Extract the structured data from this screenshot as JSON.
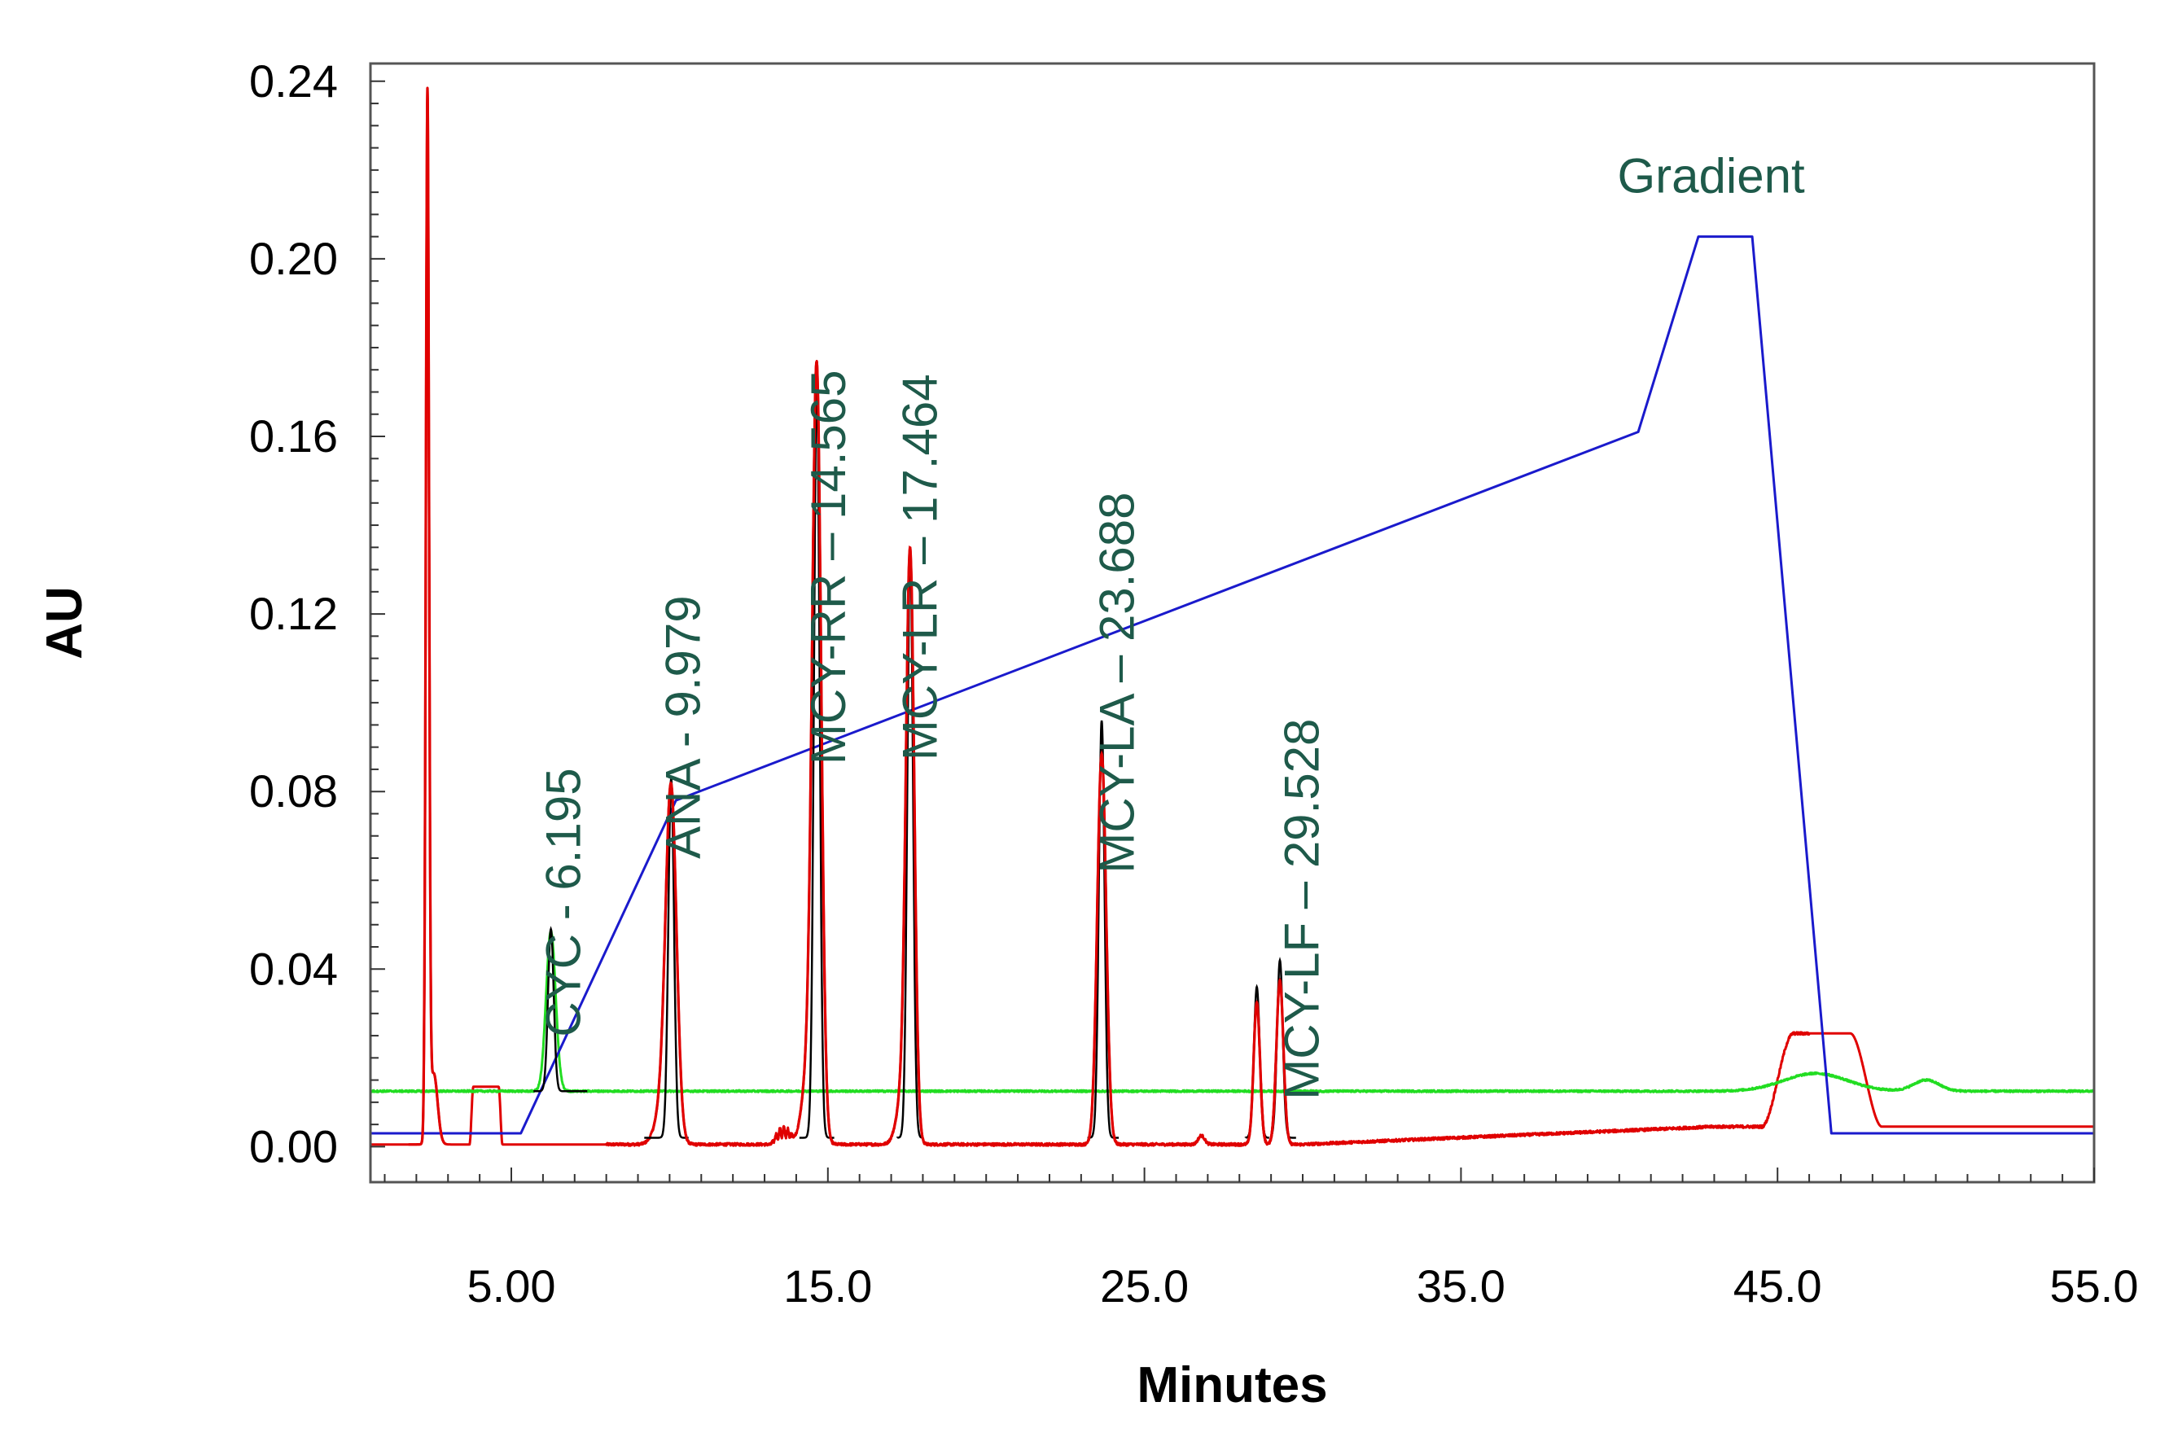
{
  "chart_data": {
    "type": "line",
    "title": "",
    "xlabel": "Minutes",
    "ylabel": "AU",
    "xlim": [
      0.55,
      55.0
    ],
    "ylim": [
      -0.008,
      0.244
    ],
    "x_ticks": [
      {
        "value": 5.0,
        "label": "5.00"
      },
      {
        "value": 15.0,
        "label": "15.0"
      },
      {
        "value": 25.0,
        "label": "25.0"
      },
      {
        "value": 35.0,
        "label": "35.0"
      },
      {
        "value": 45.0,
        "label": "45.0"
      },
      {
        "value": 55.0,
        "label": "55.0"
      }
    ],
    "y_ticks": [
      {
        "value": 0.0,
        "label": "0.00"
      },
      {
        "value": 0.04,
        "label": "0.04"
      },
      {
        "value": 0.08,
        "label": "0.08"
      },
      {
        "value": 0.12,
        "label": "0.12"
      },
      {
        "value": 0.16,
        "label": "0.16"
      },
      {
        "value": 0.2,
        "label": "0.20"
      },
      {
        "value": 0.24,
        "label": "0.24"
      }
    ],
    "colors": {
      "red": "#e00000",
      "green": "#22dd22",
      "blue": "#1a1acc",
      "black": "#000000",
      "label": "#1e5a4a"
    },
    "series": [
      {
        "name": "red-trace",
        "color": "#e00000",
        "baseline": 0.0005,
        "noise": [
          [
            8.0,
            46.0,
            0.0006
          ]
        ],
        "features": [
          {
            "type": "gauss",
            "center": 2.35,
            "height": 0.234,
            "width": 0.05
          },
          {
            "type": "gauss",
            "center": 2.55,
            "height": 0.016,
            "width": 0.12
          },
          {
            "type": "plateau",
            "start": 3.8,
            "end": 4.6,
            "height": 0.013,
            "rise": 0.12
          },
          {
            "type": "gauss",
            "center": 10.05,
            "height": 0.074,
            "width": 0.17
          },
          {
            "type": "gauss",
            "center": 9.85,
            "height": 0.01,
            "width": 0.25
          },
          {
            "type": "bump",
            "start": 13.2,
            "end": 14.0,
            "height": 0.004
          },
          {
            "type": "gauss",
            "center": 14.65,
            "height": 0.163,
            "width": 0.14
          },
          {
            "type": "gauss",
            "center": 14.45,
            "height": 0.02,
            "width": 0.22
          },
          {
            "type": "gauss",
            "center": 17.6,
            "height": 0.127,
            "width": 0.13
          },
          {
            "type": "gauss",
            "center": 17.4,
            "height": 0.012,
            "width": 0.2
          },
          {
            "type": "gauss",
            "center": 23.65,
            "height": 0.088,
            "width": 0.14
          },
          {
            "type": "gauss",
            "center": 26.8,
            "height": 0.002,
            "width": 0.1
          },
          {
            "type": "gauss",
            "center": 28.55,
            "height": 0.032,
            "width": 0.1
          },
          {
            "type": "gauss",
            "center": 29.28,
            "height": 0.037,
            "width": 0.11
          },
          {
            "type": "ramp",
            "start": 30.0,
            "end": 43.0,
            "from": 0.0005,
            "to": 0.0045
          },
          {
            "type": "plateau",
            "start": 45.5,
            "end": 47.3,
            "height": 0.021,
            "rise": 1.0
          }
        ]
      },
      {
        "name": "green-trace",
        "color": "#22dd22",
        "baseline": 0.0125,
        "noise": [
          [
            0.55,
            55.0,
            0.0004
          ]
        ],
        "features": [
          {
            "type": "gauss",
            "center": 6.25,
            "height": 0.036,
            "width": 0.15
          },
          {
            "type": "gauss",
            "center": 46.2,
            "height": 0.004,
            "width": 1.0
          },
          {
            "type": "gauss",
            "center": 49.7,
            "height": 0.0025,
            "width": 0.4
          }
        ]
      },
      {
        "name": "gradient",
        "color": "#1a1acc",
        "points": [
          [
            0.55,
            0.003
          ],
          [
            5.3,
            0.003
          ],
          [
            10.2,
            0.078
          ],
          [
            40.6,
            0.161
          ],
          [
            42.5,
            0.205
          ],
          [
            44.2,
            0.205
          ],
          [
            46.7,
            0.003
          ],
          [
            55.0,
            0.003
          ]
        ]
      }
    ],
    "black_peaks": [
      {
        "center": 6.25,
        "height": 0.049,
        "baseline": 0.0125,
        "x_from": 5.7,
        "x_to": 7.4
      },
      {
        "center": 10.05,
        "height": 0.083,
        "baseline": 0.002,
        "x_from": 9.2,
        "x_to": 10.6
      },
      {
        "center": 14.65,
        "height": 0.172,
        "baseline": 0.002,
        "x_from": 14.1,
        "x_to": 15.2
      },
      {
        "center": 17.6,
        "height": 0.134,
        "baseline": 0.002,
        "x_from": 17.2,
        "x_to": 18.0
      },
      {
        "center": 23.65,
        "height": 0.096,
        "baseline": 0.002,
        "x_from": 23.2,
        "x_to": 24.2
      },
      {
        "center": 28.55,
        "height": 0.036,
        "baseline": 0.002,
        "x_from": 28.2,
        "x_to": 28.95
      },
      {
        "center": 29.28,
        "height": 0.042,
        "baseline": 0.002,
        "x_from": 29.0,
        "x_to": 29.8
      }
    ],
    "annotations": [
      {
        "text": "CYC - 6.195",
        "x": 6.195,
        "y": 0.055,
        "rotate": -90
      },
      {
        "text": "ANA - 9.979",
        "x": 9.979,
        "y": 0.0945,
        "rotate": -90
      },
      {
        "text": "MCY-RR – 14.565",
        "x": 14.565,
        "y": 0.1305,
        "rotate": -90
      },
      {
        "text": "MCY-LR – 17.464",
        "x": 17.464,
        "y": 0.1305,
        "rotate": -90
      },
      {
        "text": "MCY-LA – 23.688",
        "x": 23.688,
        "y": 0.1045,
        "rotate": -90
      },
      {
        "text": "MCY-LF – 29.528",
        "x": 29.528,
        "y": 0.0535,
        "rotate": -90
      },
      {
        "text": "Gradient",
        "x": 42.9,
        "y": 0.219,
        "rotate": 0
      }
    ]
  }
}
